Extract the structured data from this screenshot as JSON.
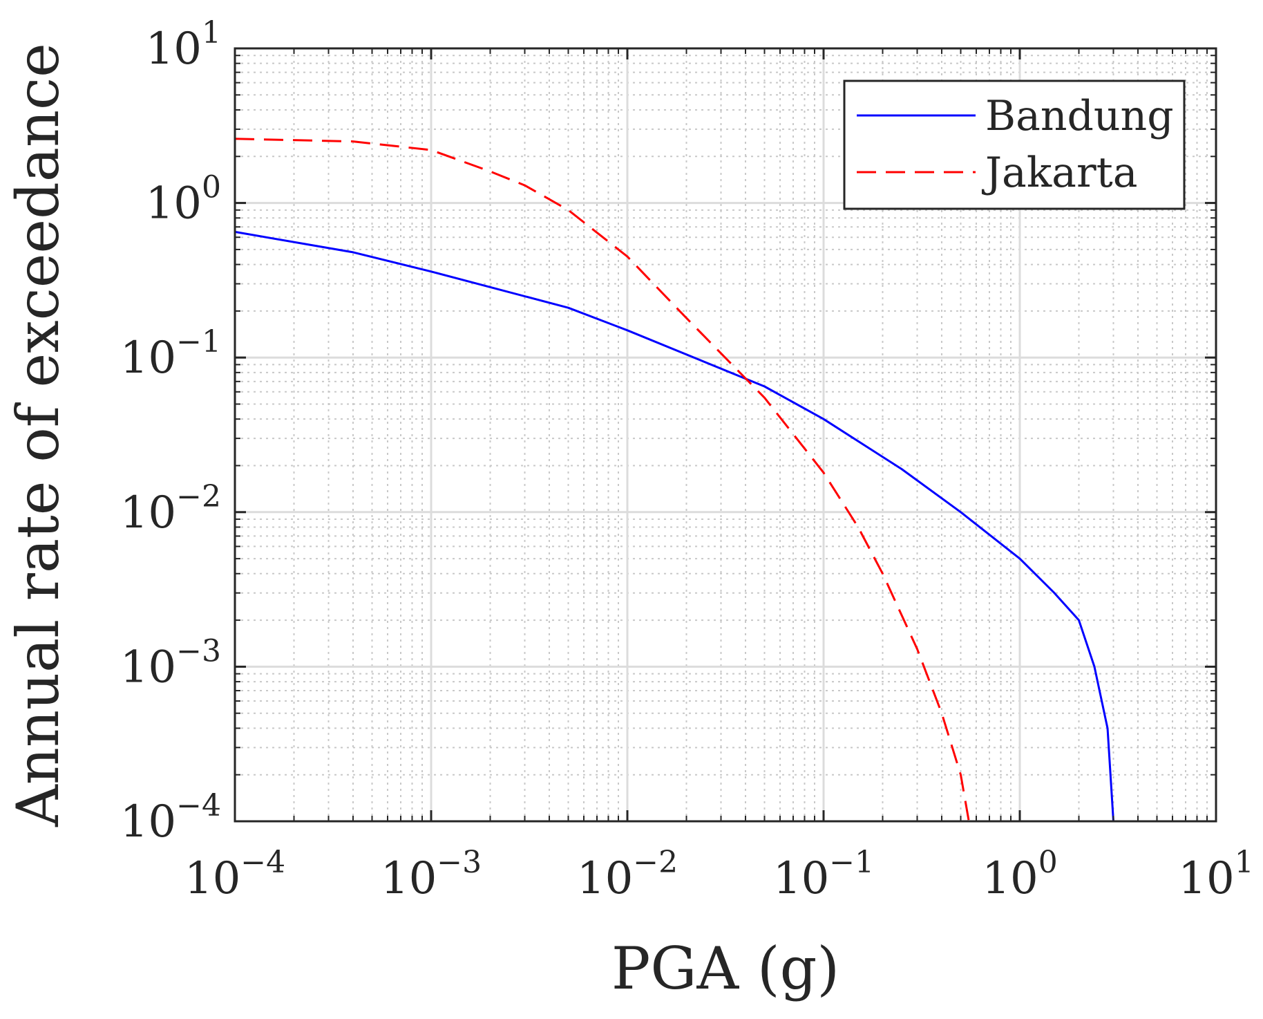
{
  "chart_data": {
    "type": "line",
    "title": "",
    "xlabel": "PGA (g)",
    "ylabel": "Annual rate of exceedance",
    "xscale": "log",
    "yscale": "log",
    "xlim": [
      0.0001,
      10
    ],
    "ylim": [
      0.0001,
      10
    ],
    "grid": true,
    "minor_grid": true,
    "legend_position": "top-right",
    "x_ticks": [
      {
        "value": 0.0001,
        "base": "10",
        "exp": "−4"
      },
      {
        "value": 0.001,
        "base": "10",
        "exp": "−3"
      },
      {
        "value": 0.01,
        "base": "10",
        "exp": "−2"
      },
      {
        "value": 0.1,
        "base": "10",
        "exp": "−1"
      },
      {
        "value": 1,
        "base": "10",
        "exp": "0"
      },
      {
        "value": 10,
        "base": "10",
        "exp": "1"
      }
    ],
    "y_ticks": [
      {
        "value": 0.0001,
        "base": "10",
        "exp": "−4"
      },
      {
        "value": 0.001,
        "base": "10",
        "exp": "−3"
      },
      {
        "value": 0.01,
        "base": "10",
        "exp": "−2"
      },
      {
        "value": 0.1,
        "base": "10",
        "exp": "−1"
      },
      {
        "value": 1,
        "base": "10",
        "exp": "0"
      },
      {
        "value": 10,
        "base": "10",
        "exp": "1"
      }
    ],
    "series": [
      {
        "name": "Bandung",
        "color": "#0000ff",
        "style": "solid",
        "x": [
          0.0001,
          0.0004,
          0.001,
          0.005,
          0.01,
          0.05,
          0.1,
          0.25,
          0.5,
          1.0,
          1.5,
          2.0,
          2.4,
          2.8,
          3.0
        ],
        "y": [
          0.65,
          0.48,
          0.36,
          0.21,
          0.15,
          0.065,
          0.04,
          0.019,
          0.01,
          0.005,
          0.003,
          0.002,
          0.001,
          0.0004,
          0.0001
        ]
      },
      {
        "name": "Jakarta",
        "color": "#ff0000",
        "style": "dashed",
        "x": [
          0.0001,
          0.0004,
          0.001,
          0.002,
          0.003,
          0.005,
          0.01,
          0.02,
          0.05,
          0.1,
          0.15,
          0.2,
          0.3,
          0.4,
          0.5,
          0.55
        ],
        "y": [
          2.6,
          2.5,
          2.2,
          1.6,
          1.3,
          0.9,
          0.45,
          0.18,
          0.055,
          0.018,
          0.008,
          0.004,
          0.0013,
          0.0005,
          0.0002,
          0.0001
        ]
      }
    ]
  }
}
